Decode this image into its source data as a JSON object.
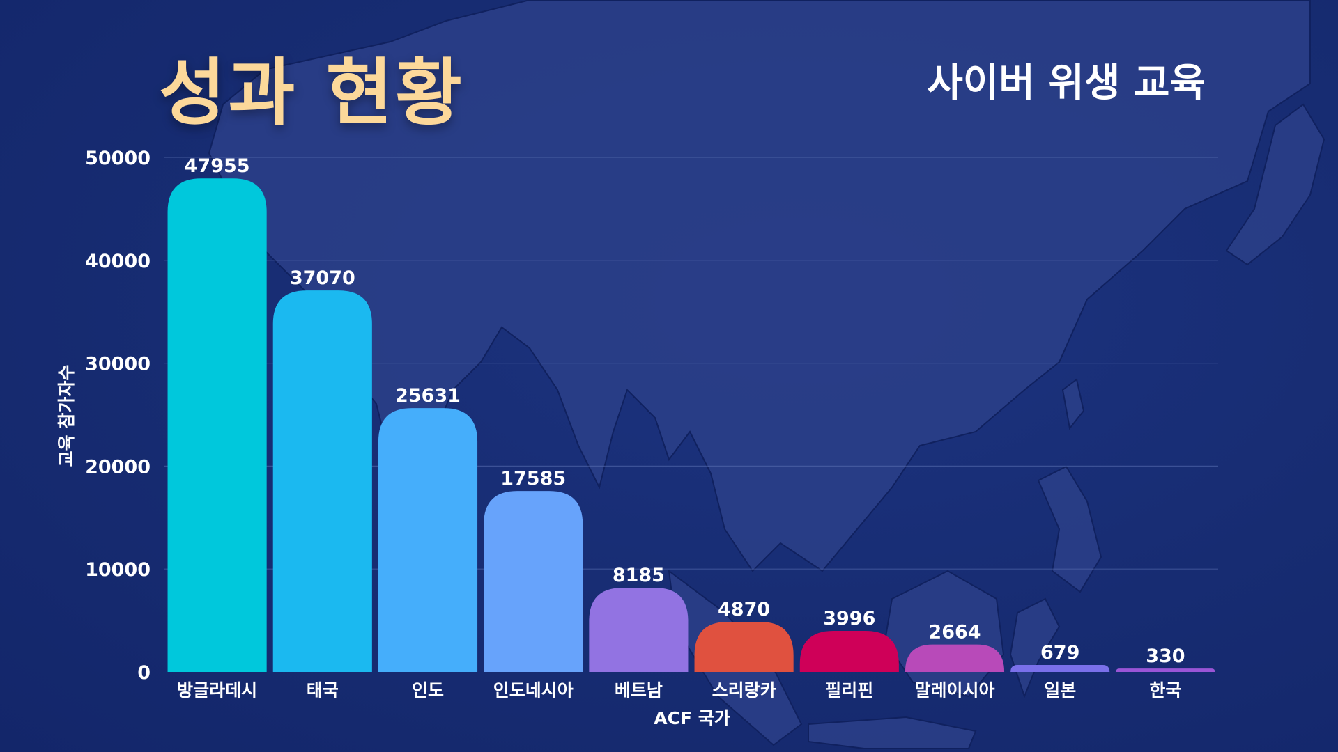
{
  "header": {
    "title": "성과 현황",
    "subtitle": "사이버 위생 교육"
  },
  "colors": {
    "title": "#fcd89a",
    "background": "#162a6e"
  },
  "chart_data": {
    "type": "bar",
    "title": "",
    "xlabel": "ACF 국가",
    "ylabel": "교육 참가자수",
    "ylim": [
      0,
      50000
    ],
    "yticks": [
      0,
      10000,
      20000,
      30000,
      40000,
      50000
    ],
    "grid": true,
    "legend": "none",
    "categories": [
      "방글라데시",
      "태국",
      "인도",
      "인도네시아",
      "베트남",
      "스리랑카",
      "필리핀",
      "말레이시아",
      "일본",
      "한국"
    ],
    "values": [
      47955,
      37070,
      25631,
      17585,
      8185,
      4870,
      3996,
      2664,
      679,
      330
    ],
    "bar_colors": [
      "#00c8dc",
      "#1bb9f0",
      "#45aefb",
      "#67a3fb",
      "#9273e2",
      "#e0513f",
      "#cf0058",
      "#b84ab9",
      "#7a70ea",
      "#9a55d6"
    ]
  }
}
